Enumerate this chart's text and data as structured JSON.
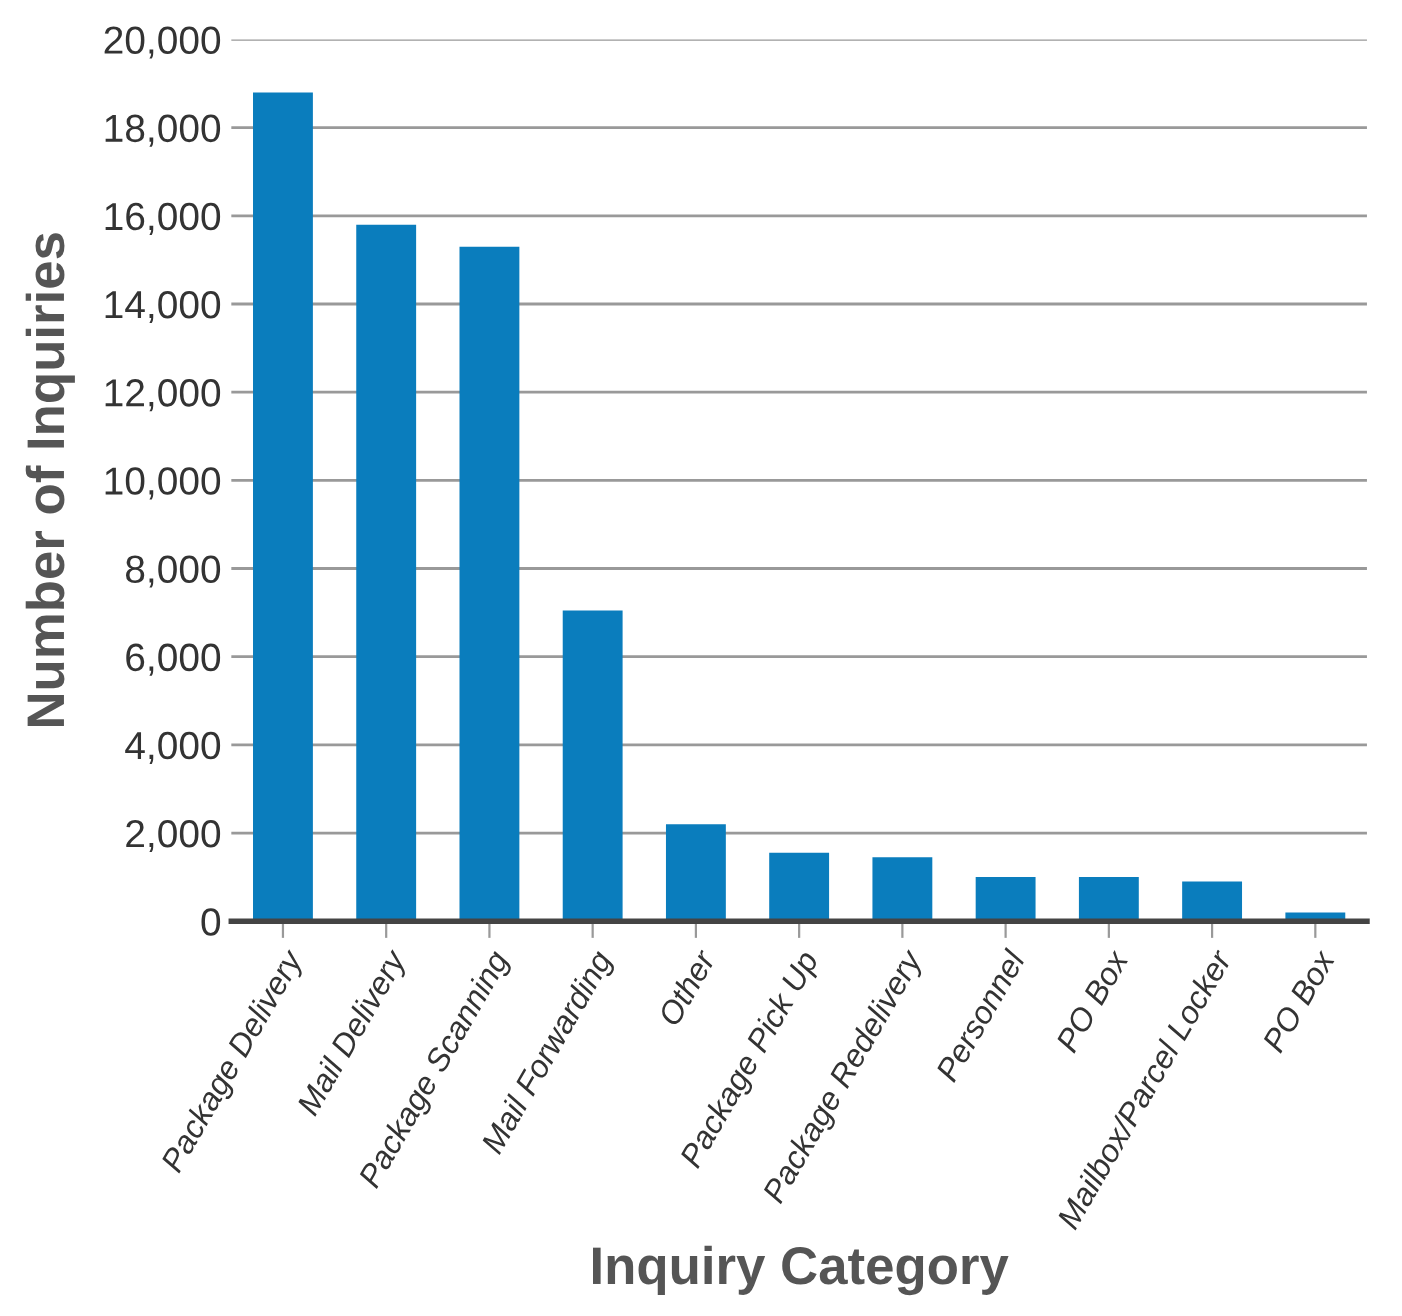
{
  "chart_data": {
    "type": "bar",
    "xlabel": "Inquiry Category",
    "ylabel": "Number of Inquiries",
    "categories": [
      "Package Delivery",
      "Mail Delivery",
      "Package Scanning",
      "Mail Forwarding",
      "Other",
      "Package Pick Up",
      "Package Redelivery",
      "Personnel",
      "PO Box",
      "Mailbox/Parcel Locker",
      "PO Box"
    ],
    "values": [
      18800,
      15800,
      15300,
      7050,
      2200,
      1550,
      1450,
      1000,
      1000,
      900,
      200
    ],
    "color": "#0a7dbd",
    "ylim": [
      0,
      20000
    ],
    "yticks": [
      {
        "value": 0,
        "label": "0"
      },
      {
        "value": 2000,
        "label": "2,000"
      },
      {
        "value": 4000,
        "label": "4,000"
      },
      {
        "value": 6000,
        "label": "6,000"
      },
      {
        "value": 8000,
        "label": "8,000"
      },
      {
        "value": 10000,
        "label": "10,000"
      },
      {
        "value": 12000,
        "label": "12,000"
      },
      {
        "value": 14000,
        "label": "14,000"
      },
      {
        "value": 16000,
        "label": "16,000"
      },
      {
        "value": 18000,
        "label": "18,000"
      },
      {
        "value": 20000,
        "label": "20,000"
      }
    ],
    "grid": "y"
  }
}
